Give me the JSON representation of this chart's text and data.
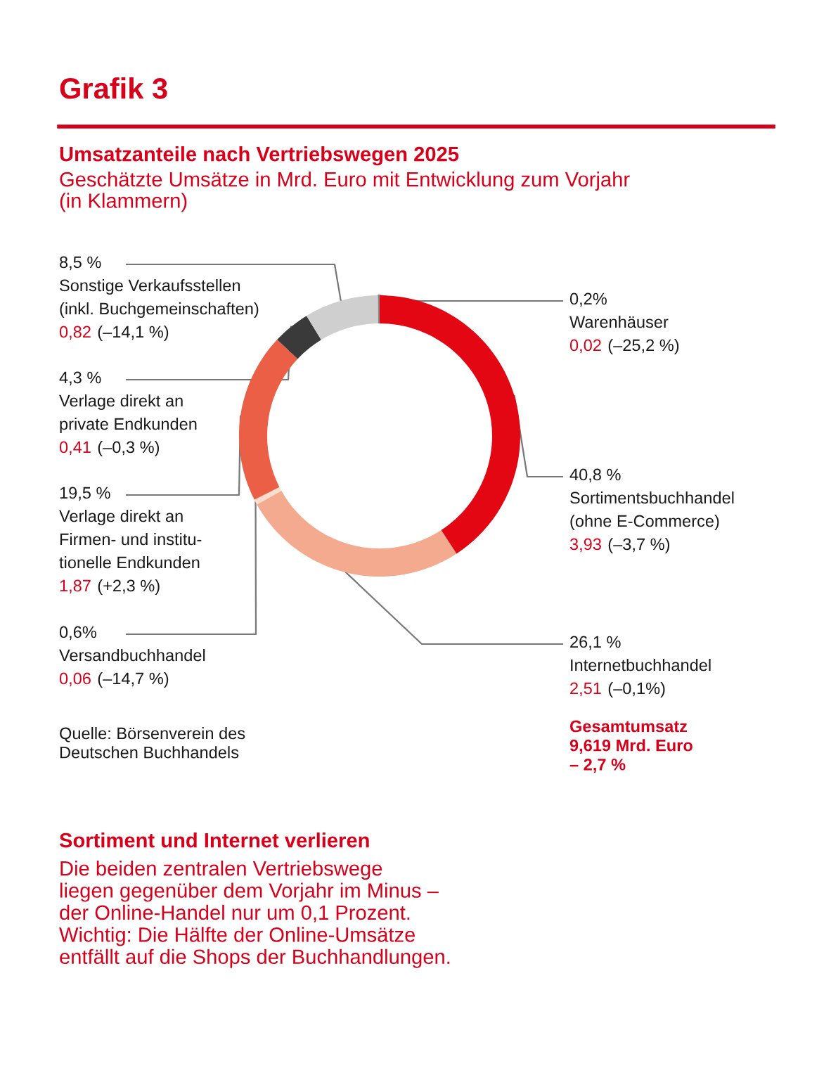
{
  "chart_data": {
    "type": "donut",
    "title": "Grafik 3",
    "subtitle": "Umsatzanteile nach Vertriebswegen 2025",
    "categories": [
      "Sortimentsbuchhandel\n(ohne E-Commerce)",
      "Internetbuchhandel",
      "Versandbuchhandel",
      "Verlage direkt an\nFirmen- und institu-\ntionelle Endkunden",
      "Verlage direkt an\nprivate Endkunden",
      "Sonstige Verkaufsstellen\n(inkl. Buchgemeinschaften)",
      "Warenhäuser"
    ],
    "values": [
      40.8,
      26.1,
      0.6,
      19.5,
      4.3,
      8.5,
      0.2
    ],
    "colors": [
      "#e30613",
      "#f4aa8e",
      "#fbdccd",
      "#ea5f45",
      "#3a3a3a",
      "#cfcfcf",
      "#8a8a8a"
    ],
    "value_labels": [
      "40,8 %",
      "26,1 %",
      "0,6%",
      "19,5 %",
      "4,3 %",
      "8,5 %",
      "0,2%"
    ],
    "annotations": [
      "3,93 (–3,7 %)",
      "2,51 (–0,1%)",
      "0,06 (–14,7 %)",
      "1,87 (+2,3 %)",
      "0,41 (–0,3 %)",
      "0,82 (–14,1 %)",
      "0,02 (–25,2 %)",
      "Geschätzte Umsätze in Mrd. Euro mit Entwicklung zum Vorjahr\n(in Klammern)",
      "Quelle: Börsenverein des\nDeutschen Buchhandels",
      "Gesamtumsatz\n9,619 Mrd. Euro\n– 2,7 %",
      "Sortiment und Internet verlieren",
      "Die beiden zentralen Vertriebswege\nliegen gegenüber dem Vorjahr im Minus –\nder Online-Handel nur um 0,1 Prozent.\nWichtig: Die Hälfte der Online-Umsätze\nentfällt auf die Shops der Buchhandlungen."
    ],
    "legend": false
  }
}
